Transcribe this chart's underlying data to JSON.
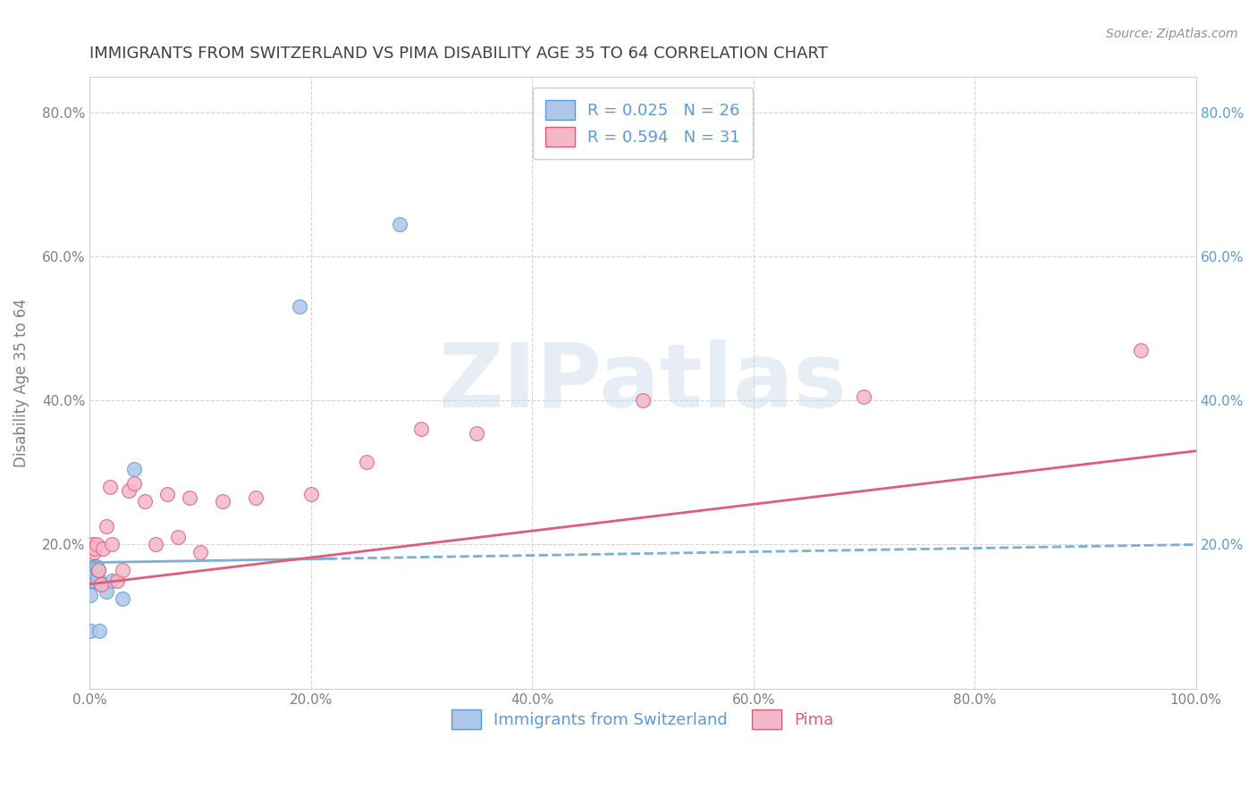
{
  "title": "IMMIGRANTS FROM SWITZERLAND VS PIMA DISABILITY AGE 35 TO 64 CORRELATION CHART",
  "source": "Source: ZipAtlas.com",
  "ylabel": "Disability Age 35 to 64",
  "xlim": [
    0,
    1.0
  ],
  "ylim": [
    0,
    0.85
  ],
  "xticks": [
    0.0,
    0.2,
    0.4,
    0.6,
    0.8,
    1.0
  ],
  "yticks": [
    0.0,
    0.2,
    0.4,
    0.6,
    0.8
  ],
  "xticklabels": [
    "0.0%",
    "20.0%",
    "40.0%",
    "60.0%",
    "80.0%",
    "100.0%"
  ],
  "yticklabels": [
    "",
    "20.0%",
    "40.0%",
    "60.0%",
    "80.0%"
  ],
  "right_yticklabels": [
    "",
    "20.0%",
    "40.0%",
    "60.0%",
    "80.0%"
  ],
  "background_color": "#ffffff",
  "grid_color": "#c8c8c8",
  "title_color": "#404040",
  "axis_color": "#808080",
  "blue_color": "#7bafd4",
  "blue_edge": "#5b9bd5",
  "blue_fill": "#aec6e8",
  "pink_color": "#e07090",
  "pink_edge": "#e05c7a",
  "pink_fill": "#f4b8c8",
  "right_axis_color": "#5b9bd5",
  "series_blue": {
    "name": "Immigrants from Switzerland",
    "R": 0.025,
    "N": 26,
    "x": [
      0.001,
      0.001,
      0.001,
      0.002,
      0.002,
      0.002,
      0.002,
      0.003,
      0.003,
      0.003,
      0.004,
      0.004,
      0.005,
      0.005,
      0.005,
      0.006,
      0.007,
      0.008,
      0.009,
      0.01,
      0.015,
      0.02,
      0.03,
      0.04,
      0.19,
      0.28
    ],
    "y": [
      0.08,
      0.13,
      0.155,
      0.15,
      0.155,
      0.16,
      0.165,
      0.155,
      0.165,
      0.17,
      0.15,
      0.165,
      0.155,
      0.16,
      0.17,
      0.17,
      0.155,
      0.165,
      0.08,
      0.145,
      0.135,
      0.15,
      0.125,
      0.305,
      0.53,
      0.645
    ]
  },
  "series_pink": {
    "name": "Pima",
    "R": 0.594,
    "N": 31,
    "x": [
      0.001,
      0.002,
      0.003,
      0.004,
      0.005,
      0.006,
      0.008,
      0.01,
      0.012,
      0.015,
      0.018,
      0.02,
      0.025,
      0.03,
      0.035,
      0.04,
      0.05,
      0.06,
      0.07,
      0.08,
      0.09,
      0.1,
      0.12,
      0.15,
      0.2,
      0.25,
      0.3,
      0.35,
      0.5,
      0.7,
      0.95
    ],
    "y": [
      0.195,
      0.2,
      0.195,
      0.19,
      0.195,
      0.2,
      0.165,
      0.145,
      0.195,
      0.225,
      0.28,
      0.2,
      0.15,
      0.165,
      0.275,
      0.285,
      0.26,
      0.2,
      0.27,
      0.21,
      0.265,
      0.19,
      0.26,
      0.265,
      0.27,
      0.315,
      0.36,
      0.355,
      0.4,
      0.405,
      0.47
    ]
  },
  "watermark_text": "ZIPatlas",
  "watermark_color": "#c8d8e8",
  "watermark_alpha": 0.45,
  "blue_line_intercept": 0.175,
  "blue_line_slope": 0.025,
  "pink_line_intercept": 0.145,
  "pink_line_slope": 0.185
}
